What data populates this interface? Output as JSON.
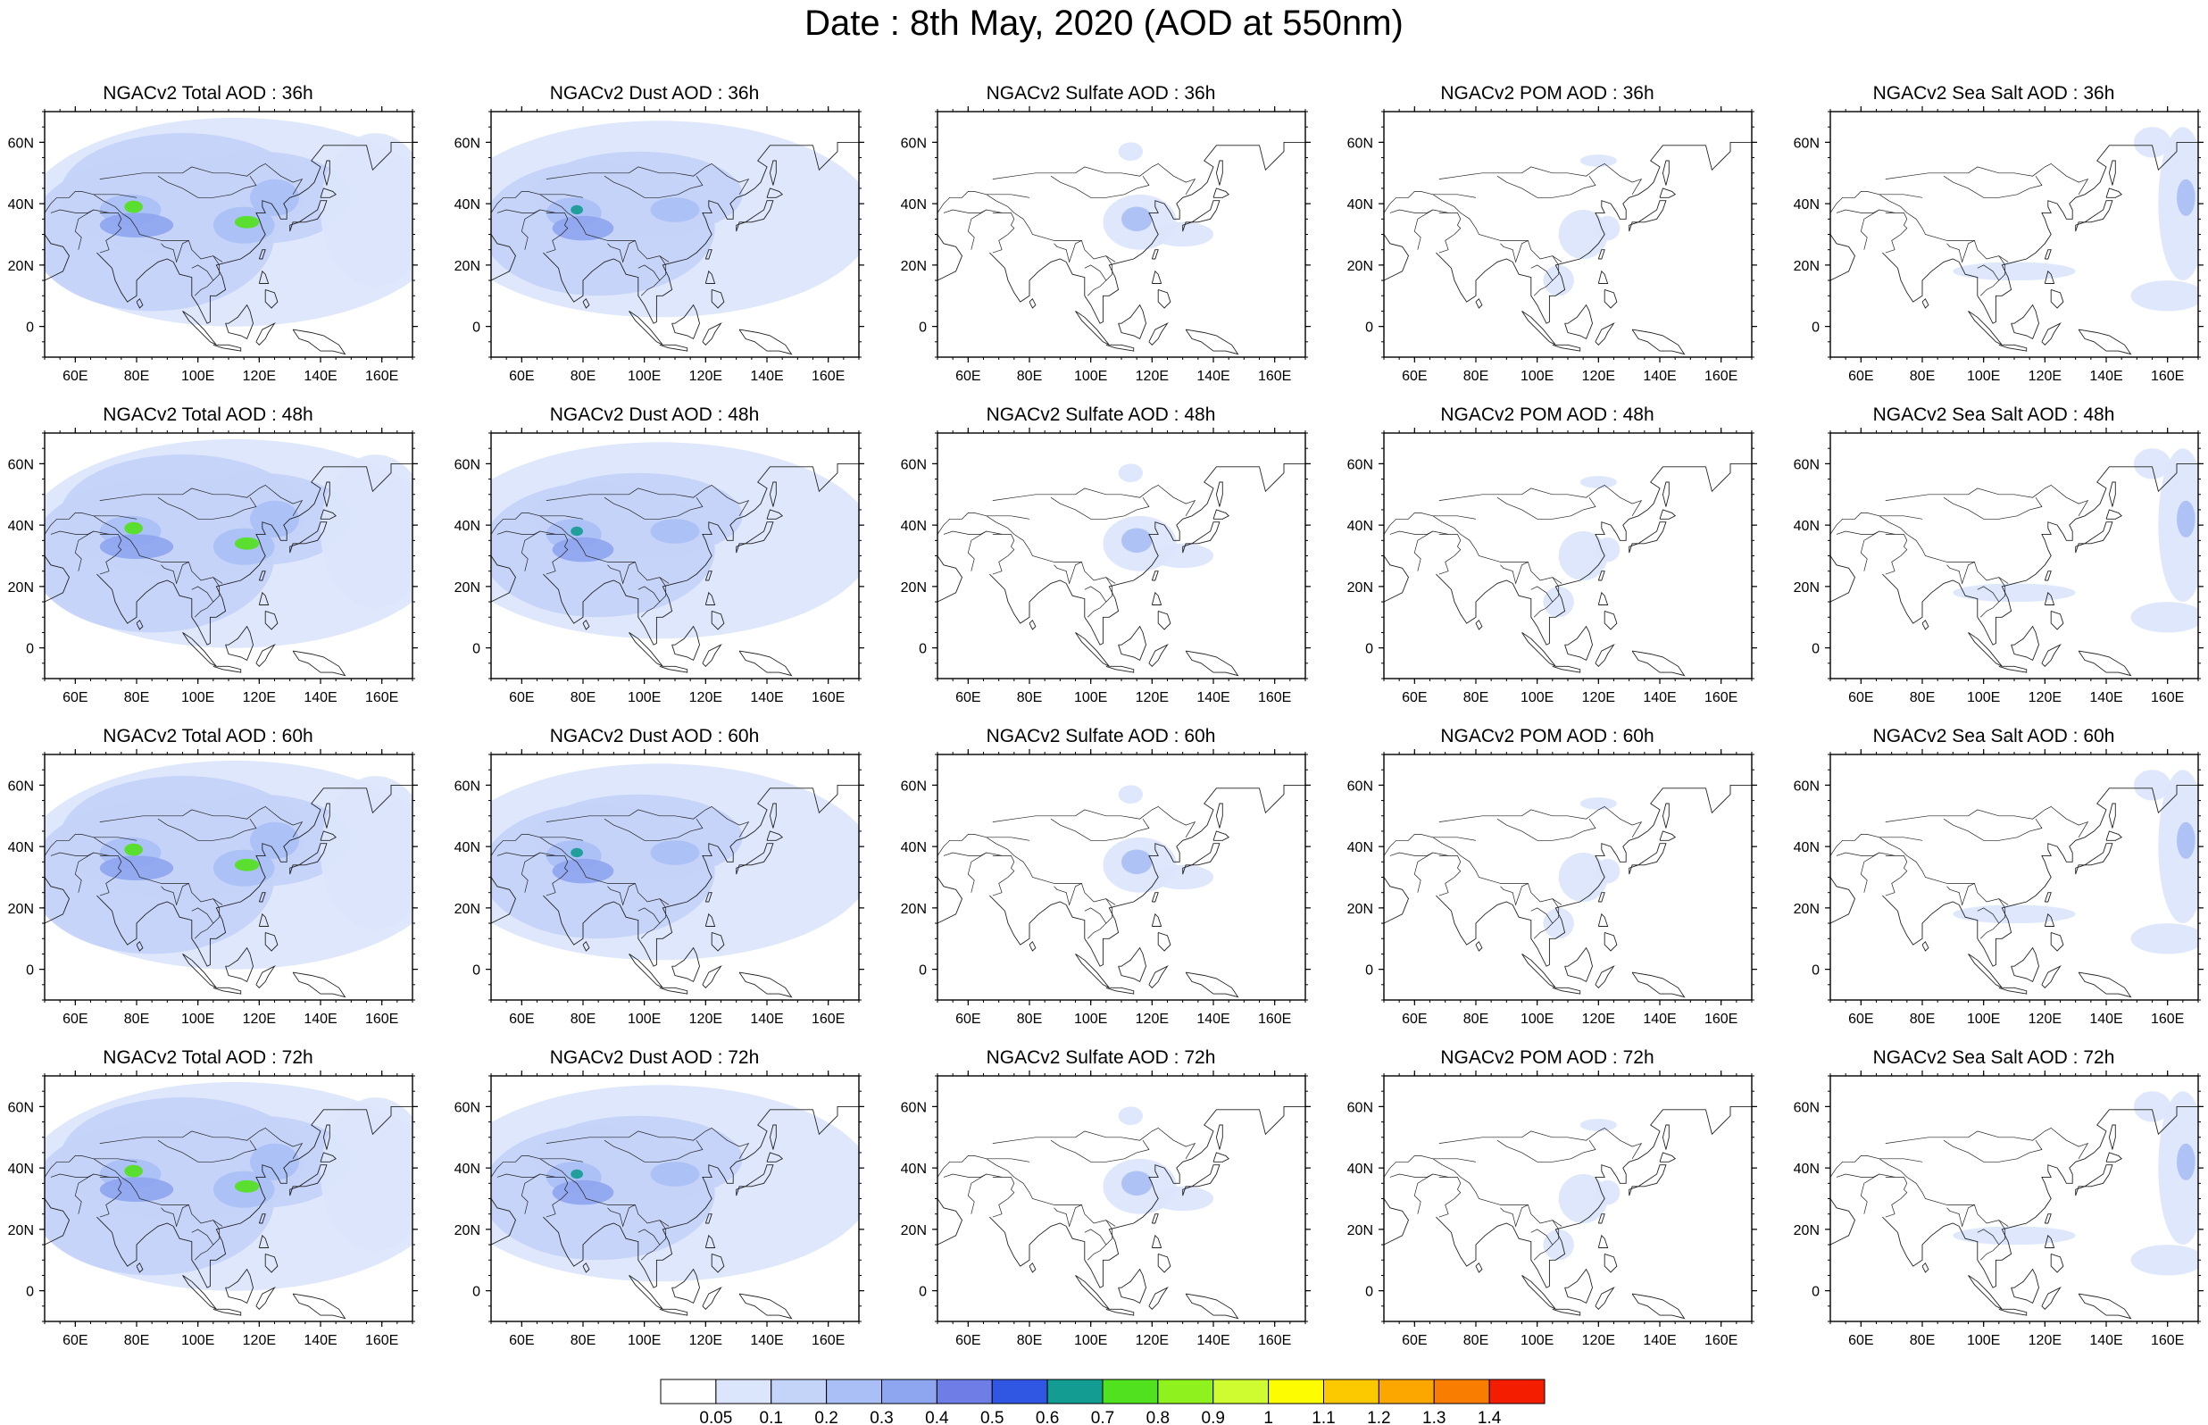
{
  "figure": {
    "title": "Date : 8th May, 2020 (AOD at 550nm)"
  },
  "map_axes": {
    "lon_range": [
      50,
      170
    ],
    "lat_range": [
      -10,
      70
    ],
    "x_ticks": [
      60,
      80,
      100,
      120,
      140,
      160
    ],
    "x_tick_labels": [
      "60E",
      "80E",
      "100E",
      "120E",
      "140E",
      "160E"
    ],
    "y_ticks": [
      0,
      20,
      40,
      60
    ],
    "y_tick_labels": [
      "0",
      "20N",
      "40N",
      "60N"
    ]
  },
  "colorbar": {
    "labels": [
      "0.05",
      "0.1",
      "0.2",
      "0.3",
      "0.4",
      "0.5",
      "0.6",
      "0.7",
      "0.8",
      "0.9",
      "1",
      "1.1",
      "1.2",
      "1.3",
      "1.4"
    ],
    "colors": [
      "#ffffff",
      "#dbe5fb",
      "#c4d3f8",
      "#a9bff5",
      "#8ea5ef",
      "#6f7ee6",
      "#2f57e4",
      "#139c92",
      "#52e11e",
      "#8ff11d",
      "#cffc30",
      "#fdfc00",
      "#fcc800",
      "#fca700",
      "#f97d00",
      "#f41d00"
    ]
  },
  "rows": [
    {
      "lead": "36h",
      "panels": [
        {
          "title": "NGACv2 Total AOD : 36h",
          "species": "total"
        },
        {
          "title": "NGACv2 Dust AOD : 36h",
          "species": "dust"
        },
        {
          "title": "NGACv2 Sulfate AOD : 36h",
          "species": "sulfate"
        },
        {
          "title": "NGACv2 POM AOD : 36h",
          "species": "pom"
        },
        {
          "title": "NGACv2 Sea Salt AOD : 36h",
          "species": "seasalt"
        }
      ]
    },
    {
      "lead": "48h",
      "panels": [
        {
          "title": "NGACv2 Total AOD : 48h",
          "species": "total"
        },
        {
          "title": "NGACv2 Dust AOD : 48h",
          "species": "dust"
        },
        {
          "title": "NGACv2 Sulfate AOD : 48h",
          "species": "sulfate"
        },
        {
          "title": "NGACv2 POM AOD : 48h",
          "species": "pom"
        },
        {
          "title": "NGACv2 Sea Salt AOD : 48h",
          "species": "seasalt"
        }
      ]
    },
    {
      "lead": "60h",
      "panels": [
        {
          "title": "NGACv2 Total AOD : 60h",
          "species": "total"
        },
        {
          "title": "NGACv2 Dust AOD : 60h",
          "species": "dust"
        },
        {
          "title": "NGACv2 Sulfate AOD : 60h",
          "species": "sulfate"
        },
        {
          "title": "NGACv2 POM AOD : 60h",
          "species": "pom"
        },
        {
          "title": "NGACv2 Sea Salt AOD : 60h",
          "species": "seasalt"
        }
      ]
    },
    {
      "lead": "72h",
      "panels": [
        {
          "title": "NGACv2 Total AOD : 72h",
          "species": "total"
        },
        {
          "title": "NGACv2 Dust AOD : 72h",
          "species": "dust"
        },
        {
          "title": "NGACv2 Sulfate AOD : 72h",
          "species": "sulfate"
        },
        {
          "title": "NGACv2 POM AOD : 72h",
          "species": "pom"
        },
        {
          "title": "NGACv2 Sea Salt  AOD : 72h",
          "species": "seasalt"
        }
      ]
    }
  ]
}
